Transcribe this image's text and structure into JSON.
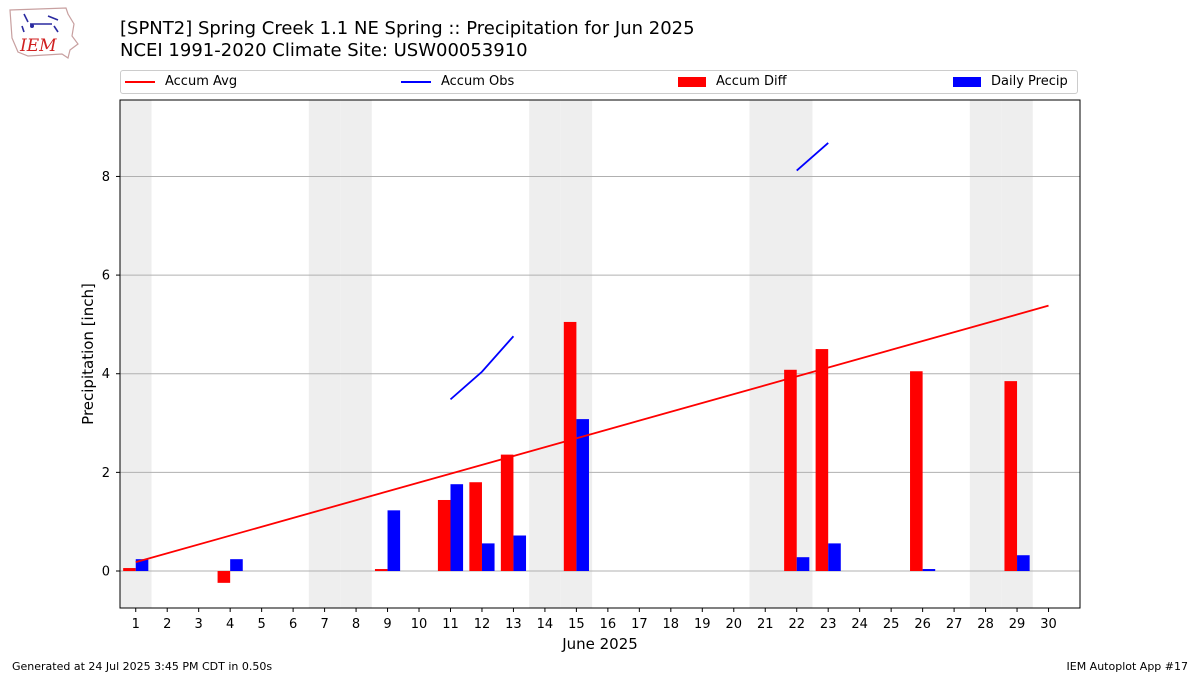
{
  "header": {
    "title_line1": "[SPNT2] Spring Creek 1.1 NE Spring :: Precipitation for Jun 2025",
    "title_line2": "NCEI 1991-2020 Climate Site: USW00053910",
    "logo_text": "IEM"
  },
  "footer": {
    "generated": "Generated at 24 Jul 2025 3:45 PM CDT in 0.50s",
    "app": "IEM Autoplot App #17"
  },
  "chart_data": {
    "type": "bar",
    "xlabel": "June 2025",
    "ylabel": "Precipitation [inch]",
    "xlim": [
      0.5,
      31.0
    ],
    "ylim": [
      -0.75,
      9.55
    ],
    "yticks": [
      0,
      2,
      4,
      6,
      8
    ],
    "xticks": [
      1,
      2,
      3,
      4,
      5,
      6,
      7,
      8,
      9,
      10,
      11,
      12,
      13,
      14,
      15,
      16,
      17,
      18,
      19,
      20,
      21,
      22,
      23,
      24,
      25,
      26,
      27,
      28,
      29,
      30
    ],
    "weekend_days": [
      1,
      7,
      8,
      14,
      15,
      21,
      22,
      28,
      29
    ],
    "grid": "horizontal",
    "legend_position": "top",
    "legend": [
      {
        "label": "Accum Avg",
        "kind": "line",
        "color": "#ff0000"
      },
      {
        "label": "Accum Obs",
        "kind": "line",
        "color": "#0000ff"
      },
      {
        "label": "Accum Diff",
        "kind": "bar",
        "color": "#ff0000"
      },
      {
        "label": "Daily Precip",
        "kind": "bar",
        "color": "#0000ff"
      }
    ],
    "accum_avg": {
      "x": [
        1,
        30
      ],
      "y": [
        0.18,
        5.38
      ],
      "color": "#ff0000"
    },
    "accum_obs_segments": [
      {
        "x": [
          11,
          12,
          13
        ],
        "y": [
          3.48,
          4.04,
          4.76
        ]
      },
      {
        "x": [
          22,
          23
        ],
        "y": [
          8.12,
          8.68
        ]
      }
    ],
    "accum_diff": {
      "color": "#ff0000",
      "x": [
        1,
        4,
        9,
        11,
        12,
        13,
        15,
        22,
        23,
        26,
        29
      ],
      "values": [
        0.06,
        -0.24,
        0.04,
        1.44,
        1.8,
        2.36,
        5.05,
        4.08,
        4.5,
        4.05,
        3.85
      ]
    },
    "daily_precip": {
      "color": "#0000ff",
      "x": [
        1,
        4,
        9,
        11,
        12,
        13,
        15,
        22,
        23,
        26,
        29
      ],
      "values": [
        0.24,
        0.24,
        1.23,
        1.76,
        0.56,
        0.72,
        3.08,
        0.28,
        0.56,
        0.04,
        0.32
      ]
    }
  }
}
